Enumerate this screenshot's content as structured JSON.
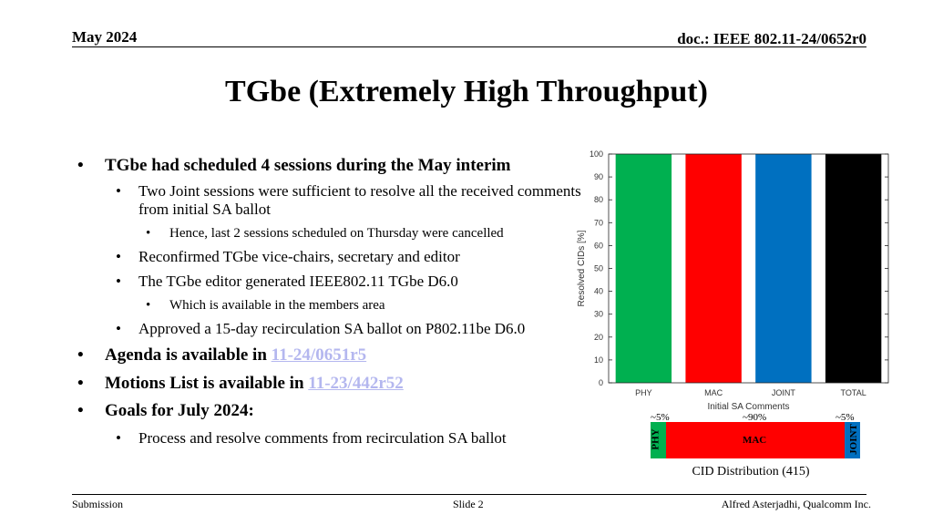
{
  "header": {
    "date": "May 2024",
    "doc": "doc.: IEEE 802.11-24/0652r0"
  },
  "title": "TGbe (Extremely High Throughput)",
  "bullets": {
    "b1": "TGbe had scheduled 4 sessions during the May interim",
    "b1_1": "Two Joint sessions were sufficient to resolve all the received comments from initial SA ballot",
    "b1_1_1": "Hence, last 2 sessions scheduled on Thursday were cancelled",
    "b1_2": "Reconfirmed TGbe vice-chairs, secretary and editor",
    "b1_3": "The TGbe editor generated IEEE802.11 TGbe D6.0",
    "b1_3_1": "Which is available in the members area",
    "b1_4": "Approved a 15-day recirculation SA ballot on P802.11be D6.0",
    "b2_prefix": "Agenda is available in ",
    "b2_link": "11-24/0651r5",
    "b3_prefix": "Motions List is available in ",
    "b3_link": "11-23/442r52",
    "b4": "Goals for July 2024:",
    "b4_1": "Process and resolve comments from recirculation SA ballot"
  },
  "chart_data": {
    "type": "bar",
    "categories": [
      "PHY",
      "MAC",
      "JOINT",
      "TOTAL"
    ],
    "values": [
      100,
      100,
      100,
      100
    ],
    "colors": [
      "#00b050",
      "#ff0000",
      "#0070c0",
      "#000000"
    ],
    "xlabel": "Initial SA Comments",
    "ylabel": "Resolved CIDs [%]",
    "ylim": [
      0,
      100
    ],
    "yticks": [
      0,
      10,
      20,
      30,
      40,
      50,
      60,
      70,
      80,
      90,
      100
    ]
  },
  "distribution": {
    "caption": "CID Distribution (415)",
    "segments": [
      {
        "label": "PHY",
        "pct_label": "~5%",
        "share": 0.05,
        "color": "#00b050"
      },
      {
        "label": "MAC",
        "pct_label": "~90%",
        "share": 0.9,
        "color": "#ff0000"
      },
      {
        "label": "JOINT",
        "pct_label": "~5%",
        "share": 0.05,
        "color": "#0070c0"
      }
    ]
  },
  "footer": {
    "left": "Submission",
    "center": "Slide 2",
    "right": "Alfred Asterjadhi, Qualcomm Inc."
  }
}
